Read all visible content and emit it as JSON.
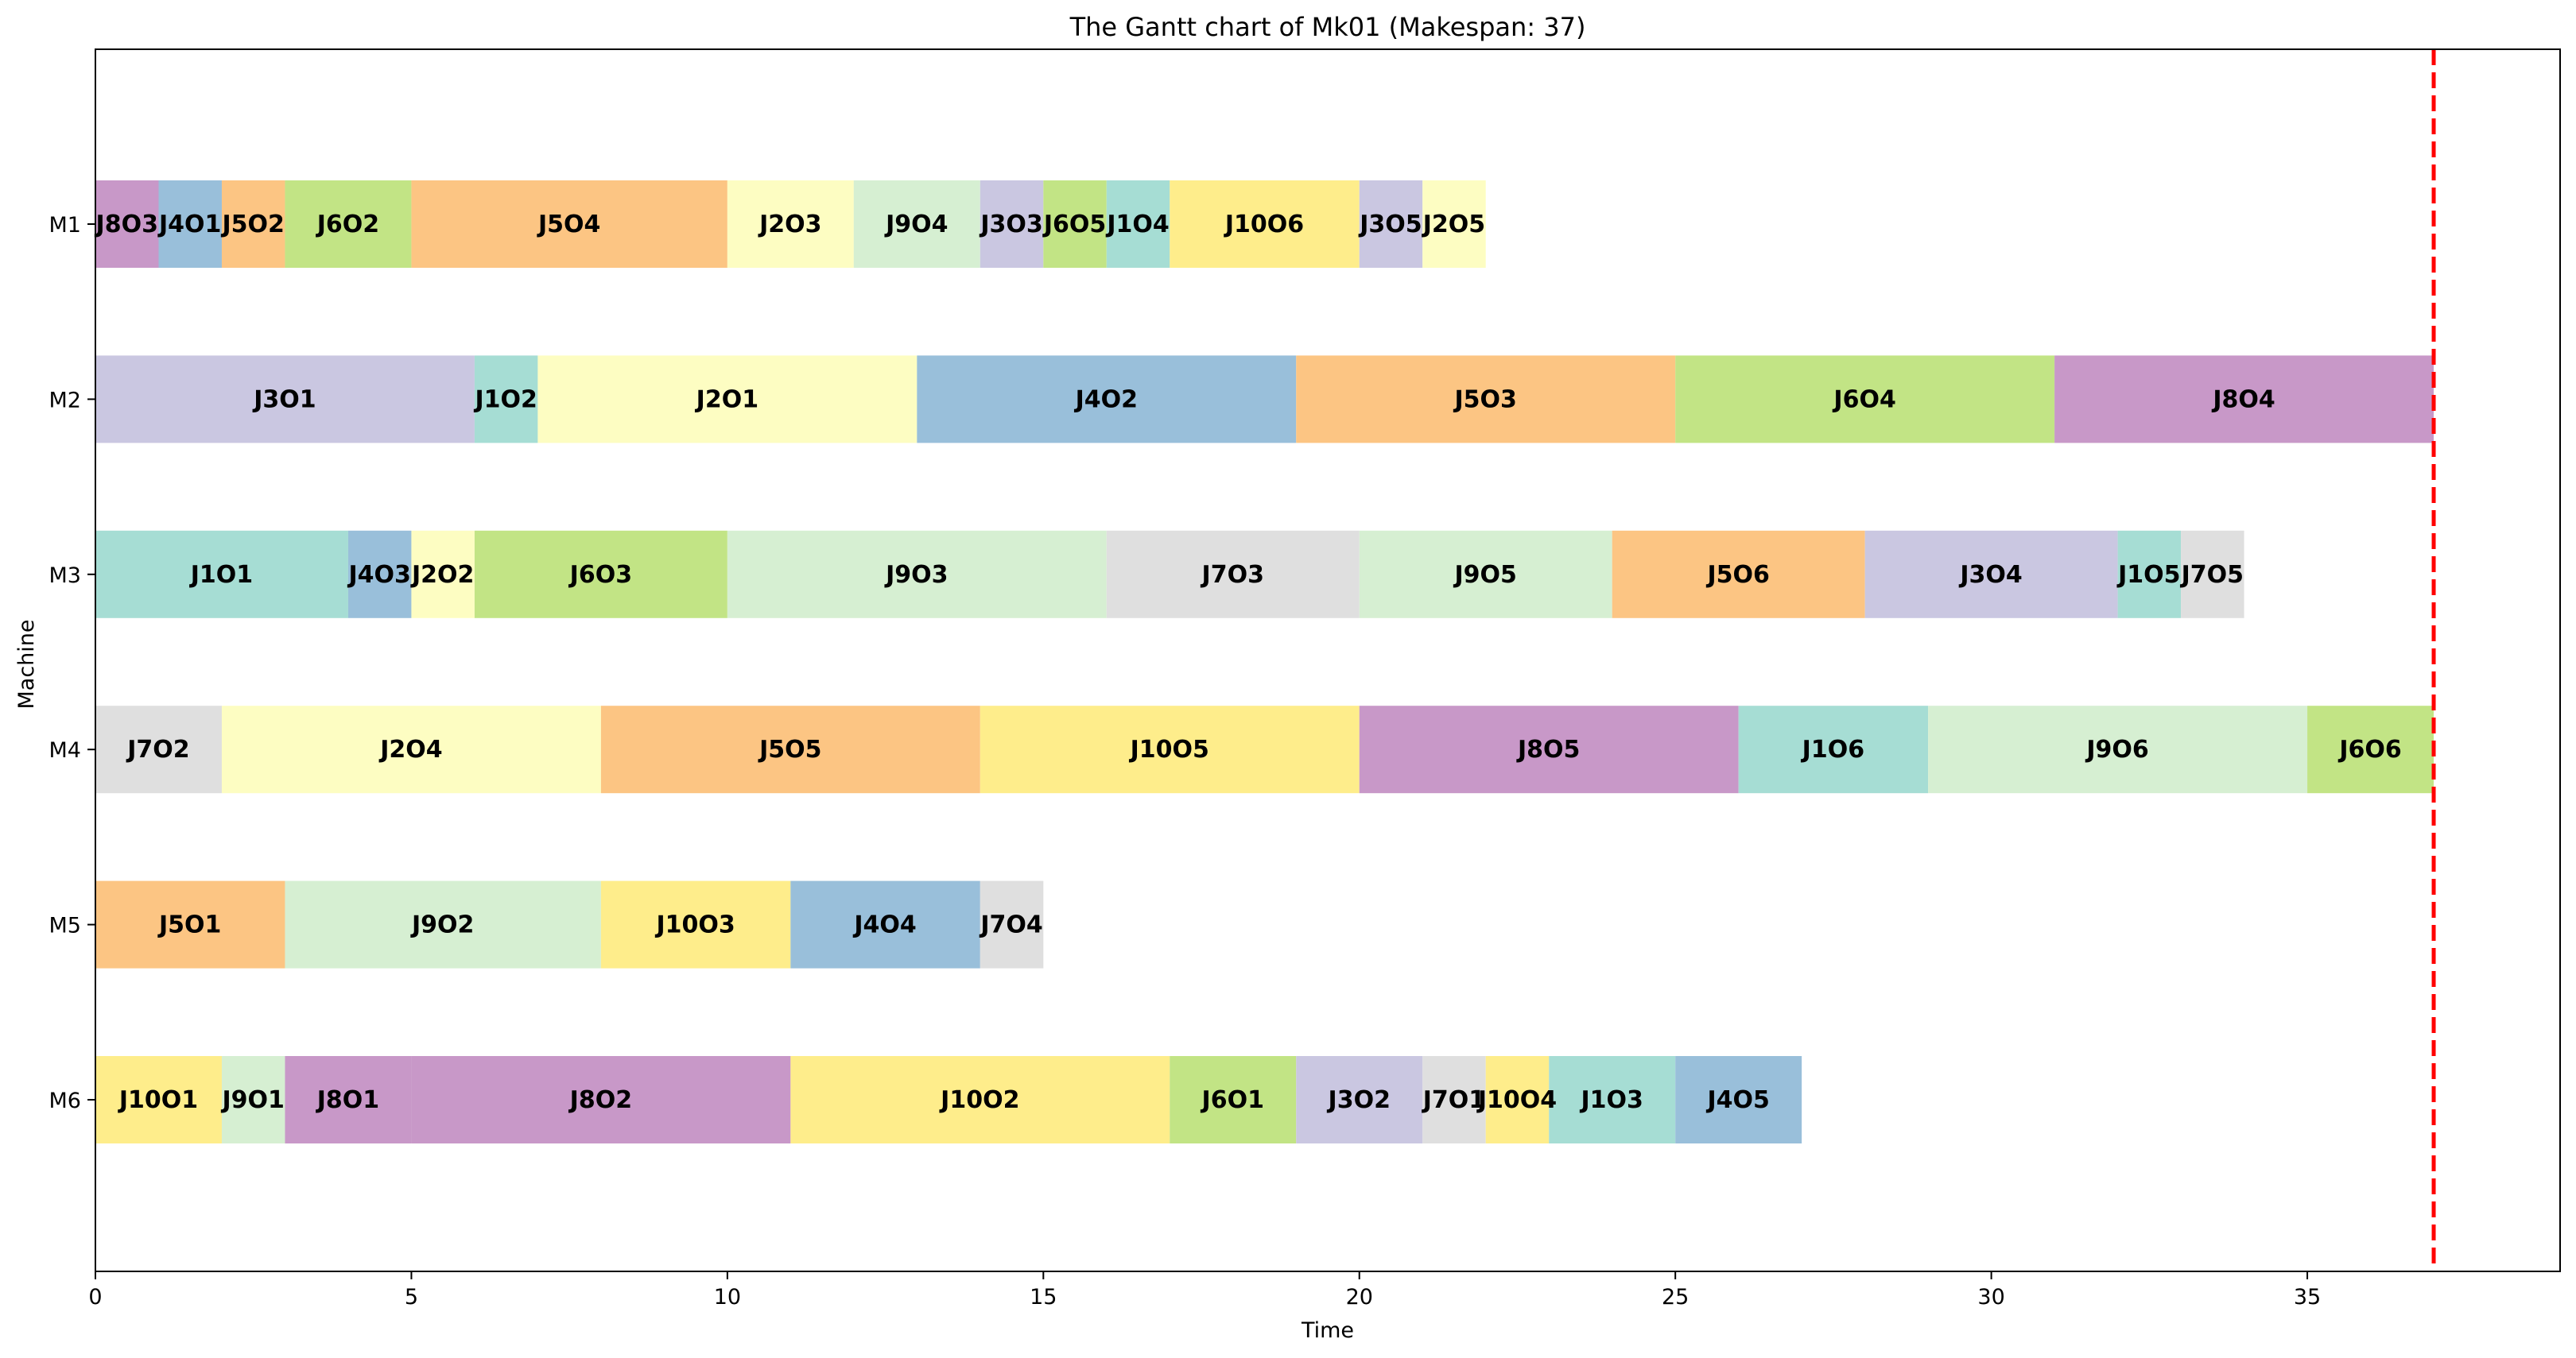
{
  "chart_data": {
    "type": "gantt",
    "title": "The Gantt chart of Mk01 (Makespan: 37)",
    "xlabel": "Time",
    "ylabel": "Machine",
    "xlim": [
      0,
      39
    ],
    "xticks": [
      0,
      5,
      10,
      15,
      20,
      25,
      30,
      35
    ],
    "grid": false,
    "makespan": 37,
    "makespan_line_color": "#ff0000",
    "machines": [
      "M1",
      "M2",
      "M3",
      "M4",
      "M5",
      "M6"
    ],
    "job_colors": {
      "J1": "#a6ddd4",
      "J2": "#fdfdc2",
      "J3": "#cac7e1",
      "J4": "#99bfda",
      "J5": "#fcc583",
      "J6": "#c2e485",
      "J7": "#dfdfdf",
      "J8": "#c898c8",
      "J9": "#d6efd2",
      "J10": "#feed8b"
    },
    "tasks": [
      {
        "machine": "M1",
        "job": "J8",
        "label": "J8O3",
        "start": 0,
        "end": 1
      },
      {
        "machine": "M1",
        "job": "J4",
        "label": "J4O1",
        "start": 1,
        "end": 2
      },
      {
        "machine": "M1",
        "job": "J5",
        "label": "J5O2",
        "start": 2,
        "end": 3
      },
      {
        "machine": "M1",
        "job": "J6",
        "label": "J6O2",
        "start": 3,
        "end": 5
      },
      {
        "machine": "M1",
        "job": "J5",
        "label": "J5O4",
        "start": 5,
        "end": 10
      },
      {
        "machine": "M1",
        "job": "J2",
        "label": "J2O3",
        "start": 10,
        "end": 12
      },
      {
        "machine": "M1",
        "job": "J9",
        "label": "J9O4",
        "start": 12,
        "end": 14
      },
      {
        "machine": "M1",
        "job": "J3",
        "label": "J3O3",
        "start": 14,
        "end": 15
      },
      {
        "machine": "M1",
        "job": "J6",
        "label": "J6O5",
        "start": 15,
        "end": 16
      },
      {
        "machine": "M1",
        "job": "J1",
        "label": "J1O4",
        "start": 16,
        "end": 17
      },
      {
        "machine": "M1",
        "job": "J10",
        "label": "J10O6",
        "start": 17,
        "end": 20
      },
      {
        "machine": "M1",
        "job": "J3",
        "label": "J3O5",
        "start": 20,
        "end": 21
      },
      {
        "machine": "M1",
        "job": "J2",
        "label": "J2O5",
        "start": 21,
        "end": 22
      },
      {
        "machine": "M2",
        "job": "J3",
        "label": "J3O1",
        "start": 0,
        "end": 6
      },
      {
        "machine": "M2",
        "job": "J1",
        "label": "J1O2",
        "start": 6,
        "end": 7
      },
      {
        "machine": "M2",
        "job": "J2",
        "label": "J2O1",
        "start": 7,
        "end": 13
      },
      {
        "machine": "M2",
        "job": "J4",
        "label": "J4O2",
        "start": 13,
        "end": 19
      },
      {
        "machine": "M2",
        "job": "J5",
        "label": "J5O3",
        "start": 19,
        "end": 25
      },
      {
        "machine": "M2",
        "job": "J6",
        "label": "J6O4",
        "start": 25,
        "end": 31
      },
      {
        "machine": "M2",
        "job": "J8",
        "label": "J8O4",
        "start": 31,
        "end": 37
      },
      {
        "machine": "M3",
        "job": "J1",
        "label": "J1O1",
        "start": 0,
        "end": 4
      },
      {
        "machine": "M3",
        "job": "J4",
        "label": "J4O3",
        "start": 4,
        "end": 5
      },
      {
        "machine": "M3",
        "job": "J2",
        "label": "J2O2",
        "start": 5,
        "end": 6
      },
      {
        "machine": "M3",
        "job": "J6",
        "label": "J6O3",
        "start": 6,
        "end": 10
      },
      {
        "machine": "M3",
        "job": "J9",
        "label": "J9O3",
        "start": 10,
        "end": 16
      },
      {
        "machine": "M3",
        "job": "J7",
        "label": "J7O3",
        "start": 16,
        "end": 20
      },
      {
        "machine": "M3",
        "job": "J9",
        "label": "J9O5",
        "start": 20,
        "end": 24
      },
      {
        "machine": "M3",
        "job": "J5",
        "label": "J5O6",
        "start": 24,
        "end": 28
      },
      {
        "machine": "M3",
        "job": "J3",
        "label": "J3O4",
        "start": 28,
        "end": 32
      },
      {
        "machine": "M3",
        "job": "J1",
        "label": "J1O5",
        "start": 32,
        "end": 33
      },
      {
        "machine": "M3",
        "job": "J7",
        "label": "J7O5",
        "start": 33,
        "end": 34
      },
      {
        "machine": "M4",
        "job": "J7",
        "label": "J7O2",
        "start": 0,
        "end": 2
      },
      {
        "machine": "M4",
        "job": "J2",
        "label": "J2O4",
        "start": 2,
        "end": 8
      },
      {
        "machine": "M4",
        "job": "J5",
        "label": "J5O5",
        "start": 8,
        "end": 14
      },
      {
        "machine": "M4",
        "job": "J10",
        "label": "J10O5",
        "start": 14,
        "end": 20
      },
      {
        "machine": "M4",
        "job": "J8",
        "label": "J8O5",
        "start": 20,
        "end": 26
      },
      {
        "machine": "M4",
        "job": "J1",
        "label": "J1O6",
        "start": 26,
        "end": 29
      },
      {
        "machine": "M4",
        "job": "J9",
        "label": "J9O6",
        "start": 29,
        "end": 35
      },
      {
        "machine": "M4",
        "job": "J6",
        "label": "J6O6",
        "start": 35,
        "end": 37
      },
      {
        "machine": "M5",
        "job": "J5",
        "label": "J5O1",
        "start": 0,
        "end": 3
      },
      {
        "machine": "M5",
        "job": "J9",
        "label": "J9O2",
        "start": 3,
        "end": 8
      },
      {
        "machine": "M5",
        "job": "J10",
        "label": "J10O3",
        "start": 8,
        "end": 11
      },
      {
        "machine": "M5",
        "job": "J4",
        "label": "J4O4",
        "start": 11,
        "end": 14
      },
      {
        "machine": "M5",
        "job": "J7",
        "label": "J7O4",
        "start": 14,
        "end": 15
      },
      {
        "machine": "M6",
        "job": "J10",
        "label": "J10O1",
        "start": 0,
        "end": 2
      },
      {
        "machine": "M6",
        "job": "J9",
        "label": "J9O1",
        "start": 2,
        "end": 3
      },
      {
        "machine": "M6",
        "job": "J8",
        "label": "J8O1",
        "start": 3,
        "end": 5
      },
      {
        "machine": "M6",
        "job": "J8",
        "label": "J8O2",
        "start": 5,
        "end": 11
      },
      {
        "machine": "M6",
        "job": "J10",
        "label": "J10O2",
        "start": 11,
        "end": 17
      },
      {
        "machine": "M6",
        "job": "J6",
        "label": "J6O1",
        "start": 17,
        "end": 19
      },
      {
        "machine": "M6",
        "job": "J3",
        "label": "J3O2",
        "start": 19,
        "end": 21
      },
      {
        "machine": "M6",
        "job": "J7",
        "label": "J7O1",
        "start": 21,
        "end": 22
      },
      {
        "machine": "M6",
        "job": "J10",
        "label": "J10O4",
        "start": 22,
        "end": 23
      },
      {
        "machine": "M6",
        "job": "J1",
        "label": "J1O3",
        "start": 23,
        "end": 25
      },
      {
        "machine": "M6",
        "job": "J4",
        "label": "J4O5",
        "start": 25,
        "end": 27
      }
    ]
  }
}
